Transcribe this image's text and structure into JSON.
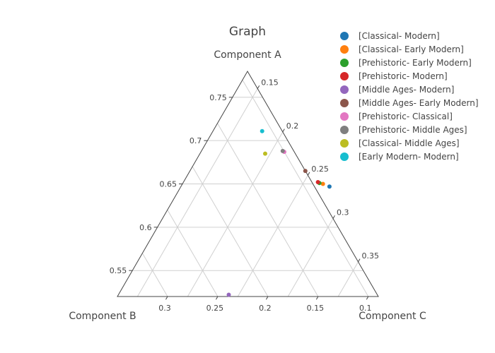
{
  "chart_data": {
    "type": "scatter",
    "subtype": "ternary",
    "title": "Graph",
    "axes": {
      "a": {
        "title": "Component A",
        "min": 0.52,
        "ticks": [
          "0.55",
          "0.6",
          "0.65",
          "0.7",
          "0.75"
        ]
      },
      "b": {
        "title": "Component B",
        "min": 0.09,
        "ticks": [
          "0.3",
          "0.25",
          "0.2",
          "0.15",
          "0.1"
        ]
      },
      "c": {
        "title": "Component C",
        "min": 0.13,
        "ticks": [
          "0.15",
          "0.2",
          "0.25",
          "0.3",
          "0.35"
        ]
      }
    },
    "grid": true,
    "legend_position": "top-right",
    "series": [
      {
        "name": "[Classical- Modern]",
        "color": "#1f77b4",
        "a": 0.647,
        "b": 0.075,
        "c": 0.278
      },
      {
        "name": "[Classical- Early Modern]",
        "color": "#ff7f0e",
        "a": 0.65,
        "b": 0.08,
        "c": 0.27
      },
      {
        "name": "[Prehistoric- Early Modern]",
        "color": "#2ca02c",
        "a": 0.651,
        "b": 0.083,
        "c": 0.266
      },
      {
        "name": "[Prehistoric- Modern]",
        "color": "#d62728",
        "a": 0.652,
        "b": 0.084,
        "c": 0.264
      },
      {
        "name": "[Middle Ages- Modern]",
        "color": "#9467bd",
        "a": 0.522,
        "b": 0.238,
        "c": 0.24
      },
      {
        "name": "[Middle Ages- Early Modern]",
        "color": "#8c564b",
        "a": 0.665,
        "b": 0.09,
        "c": 0.245
      },
      {
        "name": "[Prehistoric- Classical]",
        "color": "#e377c2",
        "a": 0.687,
        "b": 0.1,
        "c": 0.213
      },
      {
        "name": "[Prehistoric- Middle Ages]",
        "color": "#7f7f7f",
        "a": 0.688,
        "b": 0.101,
        "c": 0.211
      },
      {
        "name": "[Classical- Middle Ages]",
        "color": "#bcbd22",
        "a": 0.685,
        "b": 0.12,
        "c": 0.195
      },
      {
        "name": "[Early Modern- Modern]",
        "color": "#17becf",
        "a": 0.711,
        "b": 0.11,
        "c": 0.179
      }
    ]
  }
}
